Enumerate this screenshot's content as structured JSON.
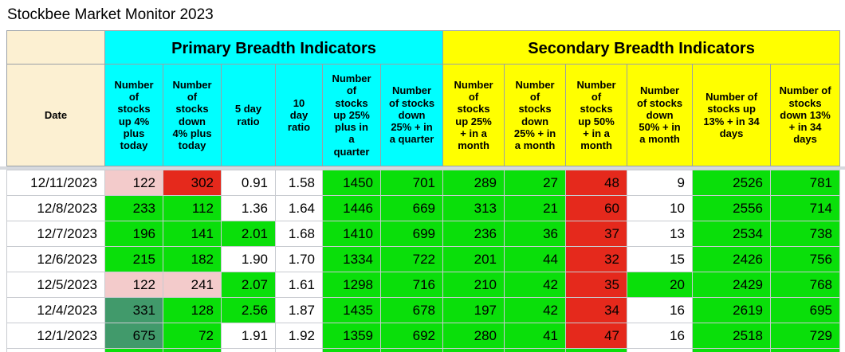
{
  "title": "Stockbee Market Monitor 2023",
  "date_header": "Date",
  "groups": {
    "primary": "Primary Breadth Indicators",
    "secondary": "Secondary Breadth Indicators"
  },
  "columns": [
    {
      "key": "up4",
      "group": "cyan",
      "label": "Number of stocks up 4% plus today"
    },
    {
      "key": "down4",
      "group": "cyan",
      "label": "Number of stocks down 4% plus today"
    },
    {
      "key": "ratio5",
      "group": "cyan",
      "label": "5 day ratio"
    },
    {
      "key": "ratio10",
      "group": "cyan",
      "label": "10 day ratio"
    },
    {
      "key": "up25q",
      "group": "cyan",
      "label": "Number of stocks up 25% plus in a quarter"
    },
    {
      "key": "down25q",
      "group": "cyan",
      "label": "Number of stocks down 25% + in a quarter"
    },
    {
      "key": "up25m",
      "group": "yellow",
      "label": "Number of stocks up 25% + in a month"
    },
    {
      "key": "down25m",
      "group": "yellow",
      "label": "Number of stocks down 25% + in a month"
    },
    {
      "key": "up50m",
      "group": "yellow",
      "label": "Number of stocks up 50% + in a month"
    },
    {
      "key": "down50m",
      "group": "yellow",
      "label": "Number of stocks down 50% + in a month"
    },
    {
      "key": "up13_34",
      "group": "yellow",
      "label": "Number of stocks up 13% + in 34 days"
    },
    {
      "key": "down13_34",
      "group": "yellow",
      "label": "Number of stocks down 13% + in 34 days"
    }
  ],
  "rows": [
    {
      "date": "12/11/2023",
      "values": [
        "122",
        "302",
        "0.91",
        "1.58",
        "1450",
        "701",
        "289",
        "27",
        "48",
        "9",
        "2526",
        "781"
      ],
      "fills": [
        "pink",
        "red",
        "white",
        "white",
        "green",
        "green",
        "green",
        "green",
        "red",
        "white",
        "green",
        "green"
      ]
    },
    {
      "date": "12/8/2023",
      "values": [
        "233",
        "112",
        "1.36",
        "1.64",
        "1446",
        "669",
        "313",
        "21",
        "60",
        "10",
        "2556",
        "714"
      ],
      "fills": [
        "green",
        "green",
        "white",
        "white",
        "green",
        "green",
        "green",
        "green",
        "red",
        "white",
        "green",
        "green"
      ]
    },
    {
      "date": "12/7/2023",
      "values": [
        "196",
        "141",
        "2.01",
        "1.68",
        "1410",
        "699",
        "236",
        "36",
        "37",
        "13",
        "2534",
        "738"
      ],
      "fills": [
        "green",
        "green",
        "green",
        "white",
        "green",
        "green",
        "green",
        "green",
        "red",
        "white",
        "green",
        "green"
      ]
    },
    {
      "date": "12/6/2023",
      "values": [
        "215",
        "182",
        "1.90",
        "1.70",
        "1334",
        "722",
        "201",
        "44",
        "32",
        "15",
        "2426",
        "756"
      ],
      "fills": [
        "green",
        "green",
        "white",
        "white",
        "green",
        "green",
        "green",
        "green",
        "red",
        "white",
        "green",
        "green"
      ]
    },
    {
      "date": "12/5/2023",
      "values": [
        "122",
        "241",
        "2.07",
        "1.61",
        "1298",
        "716",
        "210",
        "42",
        "35",
        "20",
        "2429",
        "768"
      ],
      "fills": [
        "pink",
        "pink",
        "green",
        "white",
        "green",
        "green",
        "green",
        "green",
        "red",
        "green",
        "green",
        "green"
      ]
    },
    {
      "date": "12/4/2023",
      "values": [
        "331",
        "128",
        "2.56",
        "1.87",
        "1435",
        "678",
        "197",
        "42",
        "34",
        "16",
        "2619",
        "695"
      ],
      "fills": [
        "dark_green",
        "green",
        "green",
        "white",
        "green",
        "green",
        "green",
        "green",
        "red",
        "white",
        "green",
        "green"
      ]
    },
    {
      "date": "12/1/2023",
      "values": [
        "675",
        "72",
        "1.91",
        "1.92",
        "1359",
        "692",
        "280",
        "41",
        "47",
        "16",
        "2518",
        "729"
      ],
      "fills": [
        "dark_green",
        "green",
        "white",
        "white",
        "green",
        "green",
        "green",
        "green",
        "red",
        "white",
        "green",
        "green"
      ]
    }
  ],
  "partial_row_fills": [
    "white",
    "green",
    "green",
    "white",
    "white",
    "green",
    "green",
    "green",
    "green",
    "green",
    "white",
    "green",
    "green"
  ],
  "colors": {
    "cyan": "#00FFFF",
    "yellow": "#FFFF00",
    "cream": "#FCF0D2",
    "white": "#FFFFFF",
    "green": "#0ADF0A",
    "dark_green": "#419A6B",
    "red": "#E5291C",
    "pink": "#F3CBCB",
    "divider": "#D6D9DE"
  }
}
